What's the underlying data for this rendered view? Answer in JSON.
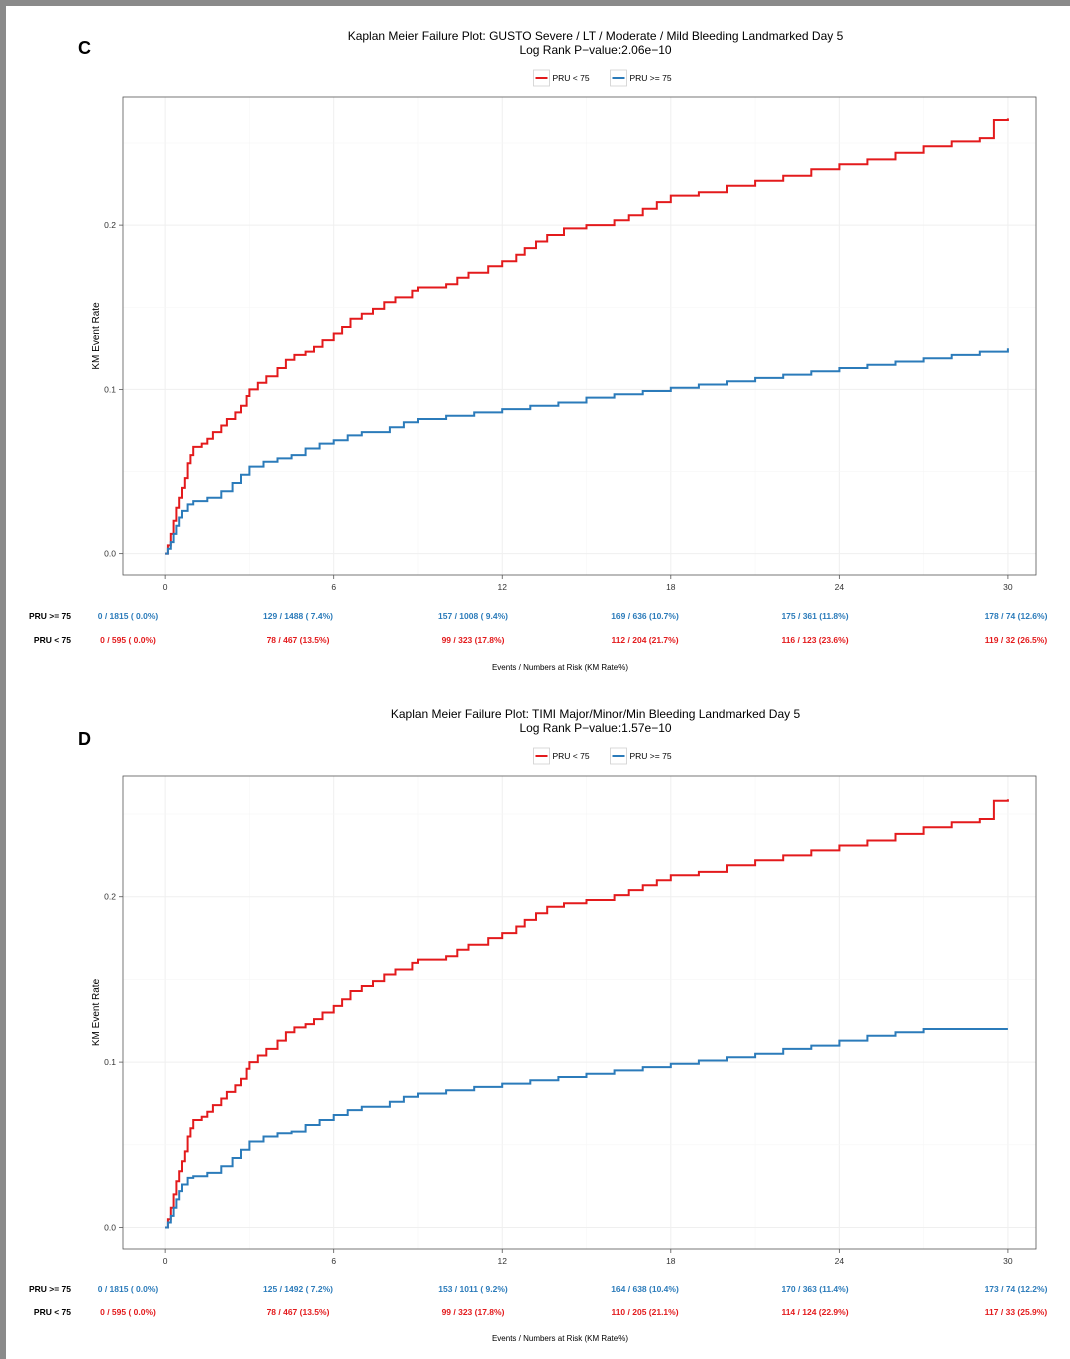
{
  "colors": {
    "low_pru": "#e31a1c",
    "high_pru": "#2b7bba",
    "frame": "#8a8a8a",
    "gridline": "#efefef",
    "axis_box": "#555555"
  },
  "chart_data": [
    {
      "type": "line",
      "step": true,
      "panel_label": "C",
      "title": "Kaplan Meier Failure Plot: GUSTO Severe / LT / Moderate / Mild Bleeding Landmarked Day 5",
      "subtitle": "Log Rank P−value:2.06e−10",
      "xlabel": "Events / Numbers at Risk (KM Rate%)",
      "ylabel": "KM Event Rate",
      "xlim": [
        -1.5,
        31
      ],
      "ylim": [
        -0.013,
        0.278
      ],
      "xticks": [
        "0",
        "6",
        "12",
        "18",
        "24",
        "30"
      ],
      "yticks": [
        "0.0",
        "0.1",
        "0.2"
      ],
      "grid": true,
      "legend": "top-center",
      "legend_items": [
        "PRU < 75",
        "PRU >= 75"
      ],
      "series": [
        {
          "name": "PRU < 75",
          "color": "#e31a1c",
          "points": [
            [
              0,
              0
            ],
            [
              0.1,
              0.005
            ],
            [
              0.2,
              0.012
            ],
            [
              0.3,
              0.02
            ],
            [
              0.4,
              0.028
            ],
            [
              0.5,
              0.034
            ],
            [
              0.6,
              0.04
            ],
            [
              0.7,
              0.046
            ],
            [
              0.8,
              0.055
            ],
            [
              0.9,
              0.06
            ],
            [
              1,
              0.065
            ],
            [
              1.3,
              0.067
            ],
            [
              1.5,
              0.07
            ],
            [
              1.7,
              0.074
            ],
            [
              2,
              0.078
            ],
            [
              2.2,
              0.082
            ],
            [
              2.5,
              0.086
            ],
            [
              2.7,
              0.09
            ],
            [
              2.9,
              0.096
            ],
            [
              3,
              0.1
            ],
            [
              3.3,
              0.104
            ],
            [
              3.6,
              0.108
            ],
            [
              4,
              0.113
            ],
            [
              4.3,
              0.118
            ],
            [
              4.6,
              0.121
            ],
            [
              5,
              0.123
            ],
            [
              5.3,
              0.126
            ],
            [
              5.6,
              0.13
            ],
            [
              6,
              0.134
            ],
            [
              6.3,
              0.138
            ],
            [
              6.6,
              0.143
            ],
            [
              7,
              0.146
            ],
            [
              7.4,
              0.149
            ],
            [
              7.8,
              0.153
            ],
            [
              8.2,
              0.156
            ],
            [
              8.8,
              0.16
            ],
            [
              9,
              0.162
            ],
            [
              10,
              0.164
            ],
            [
              10.4,
              0.168
            ],
            [
              10.8,
              0.171
            ],
            [
              11.5,
              0.175
            ],
            [
              12,
              0.178
            ],
            [
              12.5,
              0.182
            ],
            [
              12.8,
              0.186
            ],
            [
              13.2,
              0.19
            ],
            [
              13.6,
              0.194
            ],
            [
              14.2,
              0.198
            ],
            [
              15,
              0.2
            ],
            [
              16,
              0.203
            ],
            [
              16.5,
              0.206
            ],
            [
              17,
              0.21
            ],
            [
              17.5,
              0.214
            ],
            [
              18,
              0.218
            ],
            [
              19,
              0.22
            ],
            [
              20,
              0.224
            ],
            [
              21,
              0.227
            ],
            [
              22,
              0.23
            ],
            [
              23,
              0.234
            ],
            [
              24,
              0.237
            ],
            [
              25,
              0.24
            ],
            [
              26,
              0.244
            ],
            [
              27,
              0.248
            ],
            [
              28,
              0.251
            ],
            [
              29,
              0.253
            ],
            [
              29.5,
              0.264
            ],
            [
              30,
              0.265
            ]
          ]
        },
        {
          "name": "PRU >= 75",
          "color": "#2b7bba",
          "points": [
            [
              0,
              0
            ],
            [
              0.1,
              0.003
            ],
            [
              0.2,
              0.007
            ],
            [
              0.3,
              0.012
            ],
            [
              0.4,
              0.017
            ],
            [
              0.5,
              0.022
            ],
            [
              0.6,
              0.026
            ],
            [
              0.8,
              0.03
            ],
            [
              1,
              0.032
            ],
            [
              1.5,
              0.034
            ],
            [
              2,
              0.038
            ],
            [
              2.4,
              0.043
            ],
            [
              2.7,
              0.048
            ],
            [
              3,
              0.053
            ],
            [
              3.5,
              0.056
            ],
            [
              4,
              0.058
            ],
            [
              4.5,
              0.06
            ],
            [
              5,
              0.064
            ],
            [
              5.5,
              0.067
            ],
            [
              6,
              0.069
            ],
            [
              6.5,
              0.072
            ],
            [
              7,
              0.074
            ],
            [
              8,
              0.077
            ],
            [
              8.5,
              0.08
            ],
            [
              9,
              0.082
            ],
            [
              10,
              0.084
            ],
            [
              11,
              0.086
            ],
            [
              12,
              0.088
            ],
            [
              13,
              0.09
            ],
            [
              14,
              0.092
            ],
            [
              15,
              0.095
            ],
            [
              16,
              0.097
            ],
            [
              17,
              0.099
            ],
            [
              18,
              0.101
            ],
            [
              19,
              0.103
            ],
            [
              20,
              0.105
            ],
            [
              21,
              0.107
            ],
            [
              22,
              0.109
            ],
            [
              23,
              0.111
            ],
            [
              24,
              0.113
            ],
            [
              25,
              0.115
            ],
            [
              26,
              0.117
            ],
            [
              27,
              0.119
            ],
            [
              28,
              0.121
            ],
            [
              29,
              0.123
            ],
            [
              30,
              0.125
            ]
          ]
        }
      ],
      "risk_table": [
        {
          "label": "PRU >= 75",
          "color": "#2b7bba",
          "values": [
            "0 / 1815 ( 0.0%)",
            "129 / 1488 ( 7.4%)",
            "157 / 1008 ( 9.4%)",
            "169 /  636 (10.7%)",
            "175 /  361 (11.8%)",
            "178 /   74 (12.6%)"
          ]
        },
        {
          "label": "PRU < 75",
          "color": "#e31a1c",
          "values": [
            "0 /  595 ( 0.0%)",
            "78 /  467 (13.5%)",
            "99 /  323 (17.8%)",
            "112 /  204 (21.7%)",
            "116 /  123 (23.6%)",
            "119 /   32 (26.5%)"
          ]
        }
      ]
    },
    {
      "type": "line",
      "step": true,
      "panel_label": "D",
      "title": "Kaplan Meier Failure Plot: TIMI Major/Minor/Min Bleeding Landmarked Day 5",
      "subtitle": "Log Rank P−value:1.57e−10",
      "xlabel": "Events / Numbers at Risk (KM Rate%)",
      "ylabel": "KM Event Rate",
      "xlim": [
        -1.5,
        31
      ],
      "ylim": [
        -0.013,
        0.273
      ],
      "xticks": [
        "0",
        "6",
        "12",
        "18",
        "24",
        "30"
      ],
      "yticks": [
        "0.0",
        "0.1",
        "0.2"
      ],
      "grid": true,
      "legend": "top-center",
      "legend_items": [
        "PRU < 75",
        "PRU >= 75"
      ],
      "series": [
        {
          "name": "PRU < 75",
          "color": "#e31a1c",
          "points": [
            [
              0,
              0
            ],
            [
              0.1,
              0.005
            ],
            [
              0.2,
              0.012
            ],
            [
              0.3,
              0.02
            ],
            [
              0.4,
              0.028
            ],
            [
              0.5,
              0.034
            ],
            [
              0.6,
              0.04
            ],
            [
              0.7,
              0.046
            ],
            [
              0.8,
              0.055
            ],
            [
              0.9,
              0.06
            ],
            [
              1,
              0.065
            ],
            [
              1.3,
              0.067
            ],
            [
              1.5,
              0.07
            ],
            [
              1.7,
              0.074
            ],
            [
              2,
              0.078
            ],
            [
              2.2,
              0.082
            ],
            [
              2.5,
              0.086
            ],
            [
              2.7,
              0.09
            ],
            [
              2.9,
              0.096
            ],
            [
              3,
              0.1
            ],
            [
              3.3,
              0.104
            ],
            [
              3.6,
              0.108
            ],
            [
              4,
              0.113
            ],
            [
              4.3,
              0.118
            ],
            [
              4.6,
              0.121
            ],
            [
              5,
              0.123
            ],
            [
              5.3,
              0.126
            ],
            [
              5.6,
              0.13
            ],
            [
              6,
              0.134
            ],
            [
              6.3,
              0.138
            ],
            [
              6.6,
              0.143
            ],
            [
              7,
              0.146
            ],
            [
              7.4,
              0.149
            ],
            [
              7.8,
              0.153
            ],
            [
              8.2,
              0.156
            ],
            [
              8.8,
              0.16
            ],
            [
              9,
              0.162
            ],
            [
              10,
              0.164
            ],
            [
              10.4,
              0.168
            ],
            [
              10.8,
              0.171
            ],
            [
              11.5,
              0.175
            ],
            [
              12,
              0.178
            ],
            [
              12.5,
              0.182
            ],
            [
              12.8,
              0.186
            ],
            [
              13.2,
              0.19
            ],
            [
              13.6,
              0.194
            ],
            [
              14.2,
              0.196
            ],
            [
              15,
              0.198
            ],
            [
              16,
              0.201
            ],
            [
              16.5,
              0.204
            ],
            [
              17,
              0.207
            ],
            [
              17.5,
              0.21
            ],
            [
              18,
              0.213
            ],
            [
              19,
              0.215
            ],
            [
              20,
              0.219
            ],
            [
              21,
              0.222
            ],
            [
              22,
              0.225
            ],
            [
              23,
              0.228
            ],
            [
              24,
              0.231
            ],
            [
              25,
              0.234
            ],
            [
              26,
              0.238
            ],
            [
              27,
              0.242
            ],
            [
              28,
              0.245
            ],
            [
              29,
              0.247
            ],
            [
              29.5,
              0.258
            ],
            [
              30,
              0.259
            ]
          ]
        },
        {
          "name": "PRU >= 75",
          "color": "#2b7bba",
          "points": [
            [
              0,
              0
            ],
            [
              0.1,
              0.003
            ],
            [
              0.2,
              0.007
            ],
            [
              0.3,
              0.012
            ],
            [
              0.4,
              0.017
            ],
            [
              0.5,
              0.022
            ],
            [
              0.6,
              0.026
            ],
            [
              0.8,
              0.03
            ],
            [
              1,
              0.031
            ],
            [
              1.5,
              0.033
            ],
            [
              2,
              0.037
            ],
            [
              2.4,
              0.042
            ],
            [
              2.7,
              0.047
            ],
            [
              3,
              0.052
            ],
            [
              3.5,
              0.055
            ],
            [
              4,
              0.057
            ],
            [
              4.5,
              0.058
            ],
            [
              5,
              0.062
            ],
            [
              5.5,
              0.065
            ],
            [
              6,
              0.068
            ],
            [
              6.5,
              0.071
            ],
            [
              7,
              0.073
            ],
            [
              8,
              0.076
            ],
            [
              8.5,
              0.079
            ],
            [
              9,
              0.081
            ],
            [
              10,
              0.083
            ],
            [
              11,
              0.085
            ],
            [
              12,
              0.087
            ],
            [
              13,
              0.089
            ],
            [
              14,
              0.091
            ],
            [
              15,
              0.093
            ],
            [
              16,
              0.095
            ],
            [
              17,
              0.097
            ],
            [
              18,
              0.099
            ],
            [
              19,
              0.101
            ],
            [
              20,
              0.103
            ],
            [
              21,
              0.105
            ],
            [
              22,
              0.108
            ],
            [
              23,
              0.11
            ],
            [
              24,
              0.113
            ],
            [
              25,
              0.116
            ],
            [
              26,
              0.118
            ],
            [
              27,
              0.12
            ],
            [
              28,
              0.12
            ],
            [
              29,
              0.12
            ],
            [
              30,
              0.12
            ]
          ]
        }
      ],
      "risk_table": [
        {
          "label": "PRU >= 75",
          "color": "#2b7bba",
          "values": [
            "0 / 1815 ( 0.0%)",
            "125 / 1492 ( 7.2%)",
            "153 / 1011 ( 9.2%)",
            "164 /  638 (10.4%)",
            "170 /  363 (11.4%)",
            "173 /   74 (12.2%)"
          ]
        },
        {
          "label": "PRU < 75",
          "color": "#e31a1c",
          "values": [
            "0 /  595 ( 0.0%)",
            "78 /  467 (13.5%)",
            "99 /  323 (17.8%)",
            "110 /  205 (21.1%)",
            "114 /  124 (22.9%)",
            "117 /   33 (25.9%)"
          ]
        }
      ]
    }
  ]
}
